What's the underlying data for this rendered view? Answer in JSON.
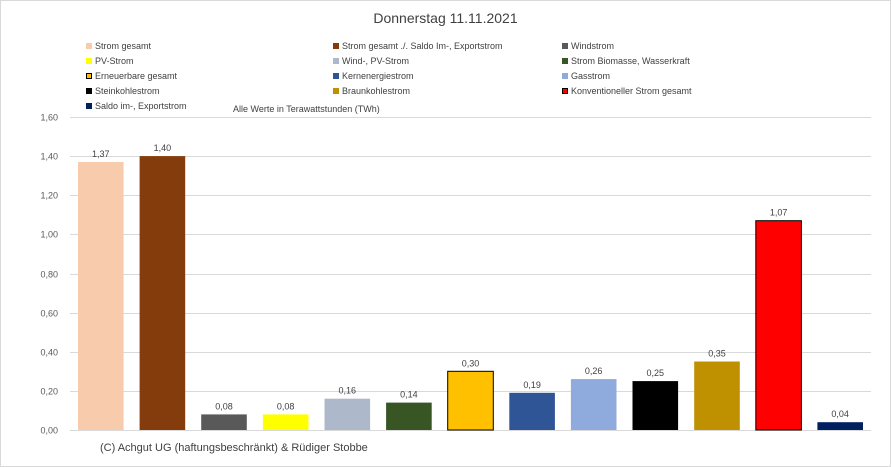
{
  "chart_data": {
    "type": "bar",
    "title": "Donnerstag 11.11.2021",
    "subtitle": "Alle Werte in Terawattstunden (TWh)",
    "xlabel": "",
    "ylabel": "",
    "ylim": [
      0,
      1.6
    ],
    "yticks": [
      "0,00",
      "0,20",
      "0,40",
      "0,60",
      "0,80",
      "1,00",
      "1,20",
      "1,40",
      "1,60"
    ],
    "ytick_values": [
      0,
      0.2,
      0.4,
      0.6,
      0.8,
      1.0,
      1.2,
      1.4,
      1.6
    ],
    "grid": true,
    "legend_position": "top",
    "categories": [
      "Strom gesamt",
      "Strom gesamt ./. Saldo Im-, Exportstrom",
      "Windstrom",
      "PV-Strom",
      "Wind-, PV-Strom",
      "Strom Biomasse, Wasserkraft",
      "Erneuerbare gesamt",
      "Kernenergiestrom",
      "Gasstrom",
      "Steinkohlestrom",
      "Braunkohlestrom",
      "Konventioneller Strom gesamt",
      "Saldo im-, Exportstrom"
    ],
    "values": [
      1.37,
      1.4,
      0.08,
      0.08,
      0.16,
      0.14,
      0.3,
      0.19,
      0.26,
      0.25,
      0.35,
      1.07,
      0.04
    ],
    "value_labels": [
      "1,37",
      "1,40",
      "0,08",
      "0,08",
      "0,16",
      "0,14",
      "0,30",
      "0,19",
      "0,26",
      "0,25",
      "0,35",
      "1,07",
      "0,04"
    ],
    "colors": [
      "#f8cbad",
      "#843c0c",
      "#595959",
      "#ffff00",
      "#adb9ca",
      "#375623",
      "#ffc000",
      "#2f5597",
      "#8faadc",
      "#000000",
      "#bf9000",
      "#ff0000",
      "#002060"
    ],
    "outlined": [
      false,
      false,
      false,
      false,
      false,
      false,
      true,
      false,
      false,
      false,
      false,
      true,
      false
    ]
  },
  "footer": {
    "copyright": "(C) Achgut UG (haftungsbeschränkt) & Rüdiger Stobbe"
  }
}
